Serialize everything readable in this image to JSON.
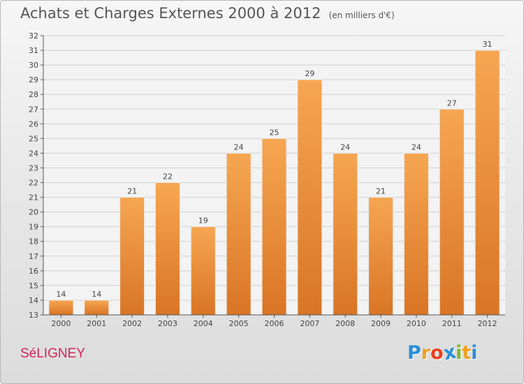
{
  "header": {
    "title": "Achats et Charges Externes 2000 à 2012",
    "unit": "(en milliers d'€)"
  },
  "footer": {
    "commune": "SéLIGNEY",
    "logo_letters": [
      "P",
      "r",
      "o",
      "x",
      "i",
      "t",
      "i"
    ],
    "logo_colors": [
      "#2a8fd8",
      "#f0a020",
      "#e84020",
      "#2a8fd8",
      "#7ab828",
      "#f0a020",
      "#2a8fd8"
    ]
  },
  "colors": {
    "bar_light": "#f6a652",
    "bar_dark": "#d97525",
    "grid": "#d0d0d0",
    "axis": "#555555",
    "text": "#444444"
  },
  "chart_data": {
    "type": "bar",
    "categories": [
      "2000",
      "2001",
      "2002",
      "2003",
      "2004",
      "2005",
      "2006",
      "2007",
      "2008",
      "2009",
      "2010",
      "2011",
      "2012"
    ],
    "values": [
      14,
      14,
      21,
      22,
      19,
      24,
      25,
      29,
      24,
      21,
      24,
      27,
      31
    ],
    "ylim": [
      13,
      32
    ],
    "yticks": [
      13,
      14,
      15,
      16,
      17,
      18,
      19,
      20,
      21,
      22,
      23,
      24,
      25,
      26,
      27,
      28,
      29,
      30,
      31,
      32
    ],
    "grid": true,
    "title": "Achats et Charges Externes 2000 à 2012",
    "xlabel": "",
    "ylabel": ""
  }
}
